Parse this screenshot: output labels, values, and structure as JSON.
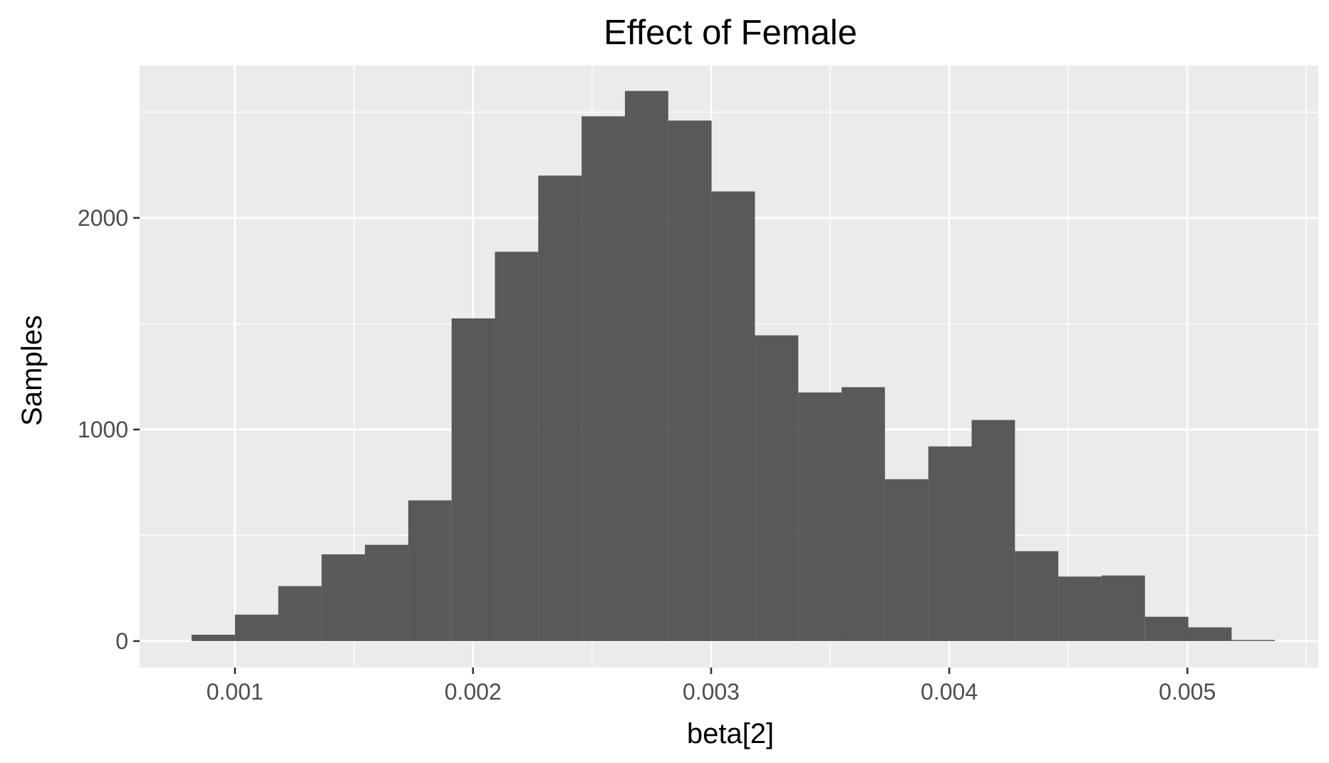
{
  "chart_data": {
    "type": "bar",
    "title": "Effect of Female",
    "xlabel": "beta[2]",
    "ylabel": "Samples",
    "xlim": [
      0.0006,
      0.00555
    ],
    "ylim": [
      -125,
      2720
    ],
    "x_ticks": [
      0.001,
      0.002,
      0.003,
      0.004,
      0.005
    ],
    "x_tick_labels": [
      "0.001",
      "0.002",
      "0.003",
      "0.004",
      "0.005"
    ],
    "y_ticks": [
      0,
      1000,
      2000
    ],
    "y_tick_labels": [
      "0",
      "1000",
      "2000"
    ],
    "grid": true,
    "bin_width": 0.000182,
    "bins": [
      {
        "x_start": 0.000818,
        "count": 30
      },
      {
        "x_start": 0.001,
        "count": 125
      },
      {
        "x_start": 0.001182,
        "count": 260
      },
      {
        "x_start": 0.001364,
        "count": 410
      },
      {
        "x_start": 0.001546,
        "count": 455
      },
      {
        "x_start": 0.001728,
        "count": 665
      },
      {
        "x_start": 0.00191,
        "count": 1525
      },
      {
        "x_start": 0.002092,
        "count": 1840
      },
      {
        "x_start": 0.002274,
        "count": 2200
      },
      {
        "x_start": 0.002456,
        "count": 2480
      },
      {
        "x_start": 0.002638,
        "count": 2600
      },
      {
        "x_start": 0.00282,
        "count": 2460
      },
      {
        "x_start": 0.003002,
        "count": 2125
      },
      {
        "x_start": 0.003184,
        "count": 1445
      },
      {
        "x_start": 0.003366,
        "count": 1175
      },
      {
        "x_start": 0.003548,
        "count": 1200
      },
      {
        "x_start": 0.00373,
        "count": 765
      },
      {
        "x_start": 0.003912,
        "count": 920
      },
      {
        "x_start": 0.004094,
        "count": 1045
      },
      {
        "x_start": 0.004276,
        "count": 425
      },
      {
        "x_start": 0.004458,
        "count": 305
      },
      {
        "x_start": 0.00464,
        "count": 310
      },
      {
        "x_start": 0.004822,
        "count": 115
      },
      {
        "x_start": 0.005004,
        "count": 65
      },
      {
        "x_start": 0.005186,
        "count": 5
      }
    ]
  },
  "colors": {
    "panel_background": "#ebebeb",
    "bar_fill": "#595959",
    "grid": "#ffffff",
    "tick_text": "#4d4d4d"
  }
}
